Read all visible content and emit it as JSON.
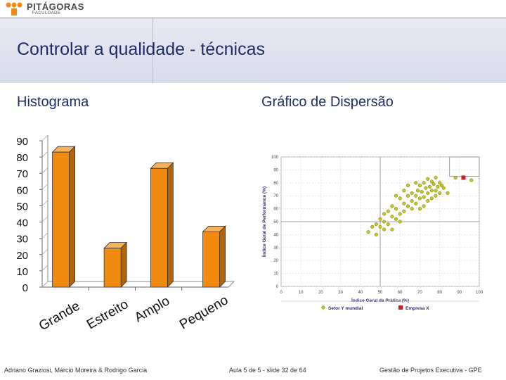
{
  "header": {
    "logo_name": "PITÁGORAS",
    "logo_sub": "FACULDADE",
    "title": "Controlar a qualidade - técnicas"
  },
  "sections": {
    "left_title": "Histograma",
    "right_title": "Gráfico de Dispersão"
  },
  "footer": {
    "authors": "Adriano Graziosi, Márcio Moreira & Rodrigo Garcia",
    "slide": "Aula 5 de 5 - slide 32 de 64",
    "course": "Gestão de Projetos Executiva - GPE"
  },
  "colors": {
    "bar": "#f08a10",
    "title": "#1f2c6b",
    "scatter_point": "#c8c81e",
    "highlight": "#cc1f2a"
  },
  "chart_data": [
    {
      "type": "bar",
      "categories": [
        "Grande",
        "Estreito",
        "Amplo",
        "Pequeno"
      ],
      "values": [
        83,
        24,
        73,
        34
      ],
      "ylim": [
        0,
        90
      ],
      "yticks": [
        0,
        10,
        20,
        30,
        40,
        50,
        60,
        70,
        80,
        90
      ],
      "style": "3d"
    },
    {
      "type": "scatter",
      "xlabel": "Índice Geral de Prática (%)",
      "ylabel": "Índice Geral de Performance (%)",
      "xlim": [
        0,
        100
      ],
      "ylim": [
        0,
        100
      ],
      "xticks": [
        "0",
        "10",
        "20",
        "30",
        "40",
        "50",
        "60",
        "70",
        "80",
        "90",
        "100"
      ],
      "yticks": [
        "0",
        "10",
        "20",
        "30",
        "40",
        "50",
        "60",
        "70",
        "80",
        "90",
        "100"
      ],
      "series": [
        {
          "name": "Setor Y mundial",
          "points": [
            [
              72,
              80
            ],
            [
              74,
              83
            ],
            [
              76,
              81
            ],
            [
              78,
              84
            ],
            [
              80,
              80
            ],
            [
              70,
              78
            ],
            [
              73,
              76
            ],
            [
              75,
              77
            ],
            [
              77,
              79
            ],
            [
              79,
              77
            ],
            [
              81,
              78
            ],
            [
              69,
              74
            ],
            [
              71,
              73
            ],
            [
              74,
              72
            ],
            [
              76,
              74
            ],
            [
              78,
              70
            ],
            [
              80,
              72
            ],
            [
              66,
              72
            ],
            [
              68,
              70
            ],
            [
              70,
              68
            ],
            [
              72,
              69
            ],
            [
              74,
              66
            ],
            [
              76,
              68
            ],
            [
              62,
              74
            ],
            [
              64,
              70
            ],
            [
              66,
              66
            ],
            [
              68,
              64
            ],
            [
              60,
              68
            ],
            [
              62,
              64
            ],
            [
              64,
              62
            ],
            [
              66,
              60
            ],
            [
              58,
              60
            ],
            [
              60,
              56
            ],
            [
              62,
              58
            ],
            [
              56,
              62
            ],
            [
              54,
              58
            ],
            [
              52,
              56
            ],
            [
              56,
              54
            ],
            [
              58,
              52
            ],
            [
              50,
              52
            ],
            [
              52,
              50
            ],
            [
              54,
              48
            ],
            [
              48,
              48
            ],
            [
              50,
              46
            ],
            [
              52,
              44
            ],
            [
              46,
              46
            ],
            [
              44,
              42
            ],
            [
              48,
              40
            ],
            [
              56,
              44
            ],
            [
              60,
              50
            ],
            [
              70,
              60
            ],
            [
              72,
              62
            ],
            [
              78,
              74
            ],
            [
              82,
              76
            ],
            [
              84,
              72
            ],
            [
              88,
              84
            ],
            [
              96,
              82
            ],
            [
              64,
              78
            ],
            [
              58,
              70
            ],
            [
              68,
              80
            ]
          ]
        },
        {
          "name": "Empresa X",
          "points": [
            [
              92,
              84
            ]
          ]
        }
      ],
      "reference_x": 50,
      "reference_y": 50
    }
  ]
}
